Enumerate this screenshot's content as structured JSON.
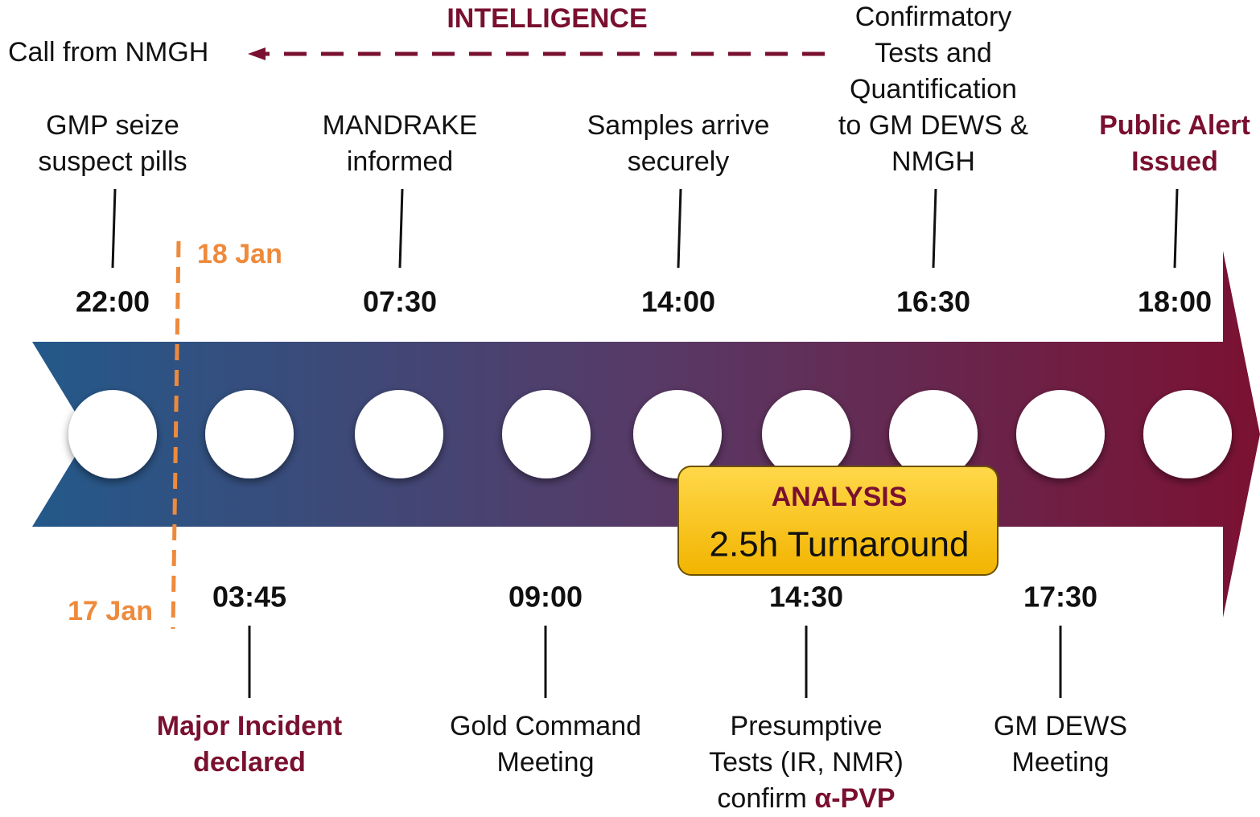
{
  "intelligence": {
    "title": "INTELLIGENCE",
    "call": "Call from NMGH"
  },
  "dates": {
    "upper": "18 Jan",
    "lower": "17 Jan"
  },
  "top_events": [
    {
      "time": "22:00",
      "lines": [
        "GMP seize",
        "suspect pills"
      ]
    },
    {
      "time": "07:30",
      "lines": [
        "MANDRAKE",
        "informed"
      ]
    },
    {
      "time": "14:00",
      "lines": [
        "Samples arrive",
        "securely"
      ]
    },
    {
      "time": "16:30",
      "lines": [
        "Confirmatory",
        "Tests and",
        "Quantification",
        "to GM DEWS &",
        "NMGH"
      ]
    },
    {
      "time": "18:00",
      "lines": [
        "Public Alert",
        "Issued"
      ],
      "highlight": true
    }
  ],
  "bottom_events": [
    {
      "time": "03:45",
      "lines": [
        "Major Incident",
        "declared"
      ],
      "highlight": true
    },
    {
      "time": "09:00",
      "lines": [
        "Gold Command",
        "Meeting"
      ]
    },
    {
      "time": "14:30",
      "lines": [
        "Presumptive",
        "Tests (IR, NMR)",
        "confirm"
      ],
      "emphasis": "α-PVP"
    },
    {
      "time": "17:30",
      "lines": [
        "GM DEWS",
        "Meeting"
      ]
    }
  ],
  "analysis": {
    "title": "ANALYSIS",
    "subtitle": "2.5h Turnaround"
  }
}
